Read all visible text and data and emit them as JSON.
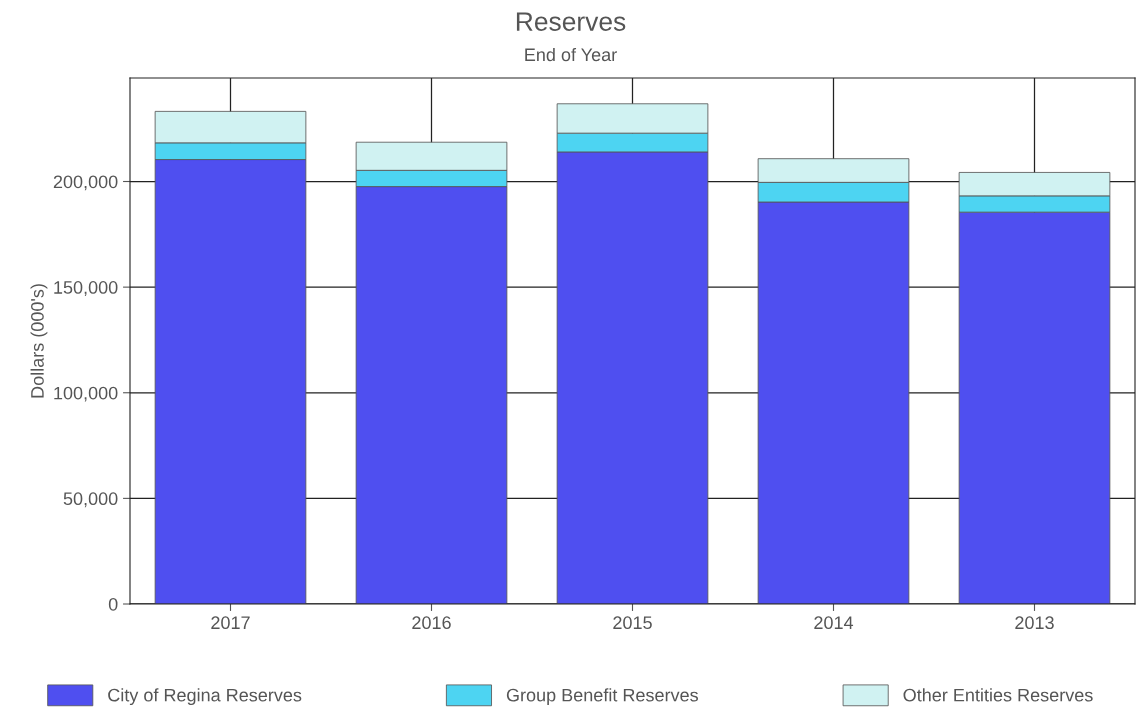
{
  "chart_data": {
    "type": "bar",
    "title": "Reserves",
    "subtitle": "End of Year",
    "ylabel": "Dollars (000's)",
    "categories": [
      "2017",
      "2016",
      "2015",
      "2014",
      "2013"
    ],
    "stacked": true,
    "series": [
      {
        "name": "City of Regina Reserves",
        "color": "#4f4ff0",
        "values": [
          210400,
          197600,
          214000,
          190300,
          185500
        ]
      },
      {
        "name": "Group Benefit Reserves",
        "color": "#4dd4f2",
        "values": [
          7900,
          7700,
          8900,
          9300,
          7700
        ]
      },
      {
        "name": "Other Entities Reserves",
        "color": "#d0f2f2",
        "values": [
          14900,
          13300,
          13900,
          11200,
          11100
        ]
      }
    ],
    "ylim": [
      0,
      249000
    ],
    "yticks": [
      {
        "value": 0,
        "label": "0"
      },
      {
        "value": 50000,
        "label": "50,000"
      },
      {
        "value": 100000,
        "label": "100,000"
      },
      {
        "value": 150000,
        "label": "150,000"
      },
      {
        "value": 200000,
        "label": "200,000"
      }
    ],
    "grid": true,
    "legend": "bottom"
  }
}
